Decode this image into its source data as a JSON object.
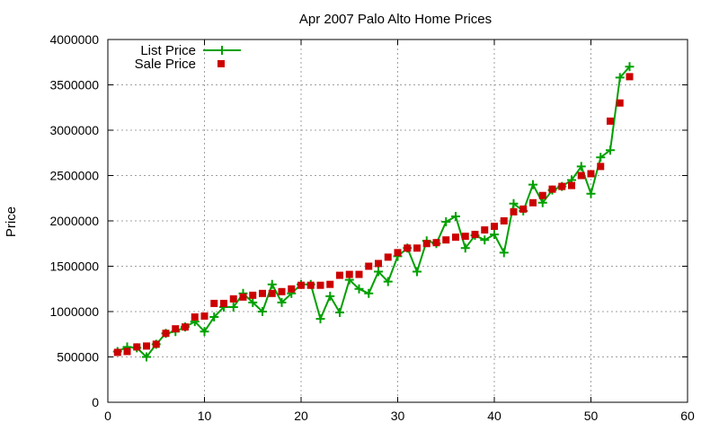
{
  "chart_data": {
    "type": "line",
    "title": "Apr 2007 Palo Alto Home Prices",
    "xlabel": "",
    "ylabel": "Price",
    "xlim": [
      0,
      60
    ],
    "ylim": [
      0,
      4000000
    ],
    "xticks": [
      "0",
      "10",
      "20",
      "30",
      "40",
      "50",
      "60"
    ],
    "yticks": [
      "0",
      "500000",
      "1000000",
      "1500000",
      "2000000",
      "2500000",
      "3000000",
      "3500000",
      "4000000"
    ],
    "grid": true,
    "legend_position": "top-left",
    "x": [
      1,
      2,
      3,
      4,
      5,
      6,
      7,
      8,
      9,
      10,
      11,
      12,
      13,
      14,
      15,
      16,
      17,
      18,
      19,
      20,
      21,
      22,
      23,
      24,
      25,
      26,
      27,
      28,
      29,
      30,
      31,
      32,
      33,
      34,
      35,
      36,
      37,
      38,
      39,
      40,
      41,
      42,
      43,
      44,
      45,
      46,
      47,
      48,
      49,
      50,
      51,
      52,
      53,
      54
    ],
    "series": [
      {
        "name": "List Price",
        "style": "line+cross",
        "color": "#00a000",
        "values": [
          560000,
          610000,
          600000,
          500000,
          640000,
          760000,
          780000,
          830000,
          890000,
          780000,
          940000,
          1050000,
          1050000,
          1200000,
          1100000,
          1000000,
          1300000,
          1100000,
          1200000,
          1300000,
          1300000,
          920000,
          1170000,
          990000,
          1350000,
          1250000,
          1200000,
          1440000,
          1330000,
          1610000,
          1700000,
          1440000,
          1780000,
          1750000,
          1990000,
          2050000,
          1700000,
          1840000,
          1790000,
          1850000,
          1650000,
          2190000,
          2110000,
          2400000,
          2200000,
          2340000,
          2380000,
          2450000,
          2600000,
          2300000,
          2700000,
          2780000,
          3580000,
          3700000
        ]
      },
      {
        "name": "Sale Price",
        "style": "square",
        "color": "#cc0000",
        "values": [
          550000,
          560000,
          610000,
          620000,
          640000,
          760000,
          810000,
          830000,
          940000,
          950000,
          1090000,
          1090000,
          1140000,
          1160000,
          1180000,
          1200000,
          1200000,
          1220000,
          1250000,
          1290000,
          1290000,
          1290000,
          1300000,
          1400000,
          1410000,
          1410000,
          1500000,
          1530000,
          1600000,
          1650000,
          1700000,
          1700000,
          1750000,
          1760000,
          1790000,
          1820000,
          1830000,
          1850000,
          1900000,
          1940000,
          2000000,
          2100000,
          2130000,
          2200000,
          2280000,
          2350000,
          2380000,
          2390000,
          2500000,
          2520000,
          2600000,
          3100000,
          3300000,
          3590000
        ]
      }
    ]
  }
}
